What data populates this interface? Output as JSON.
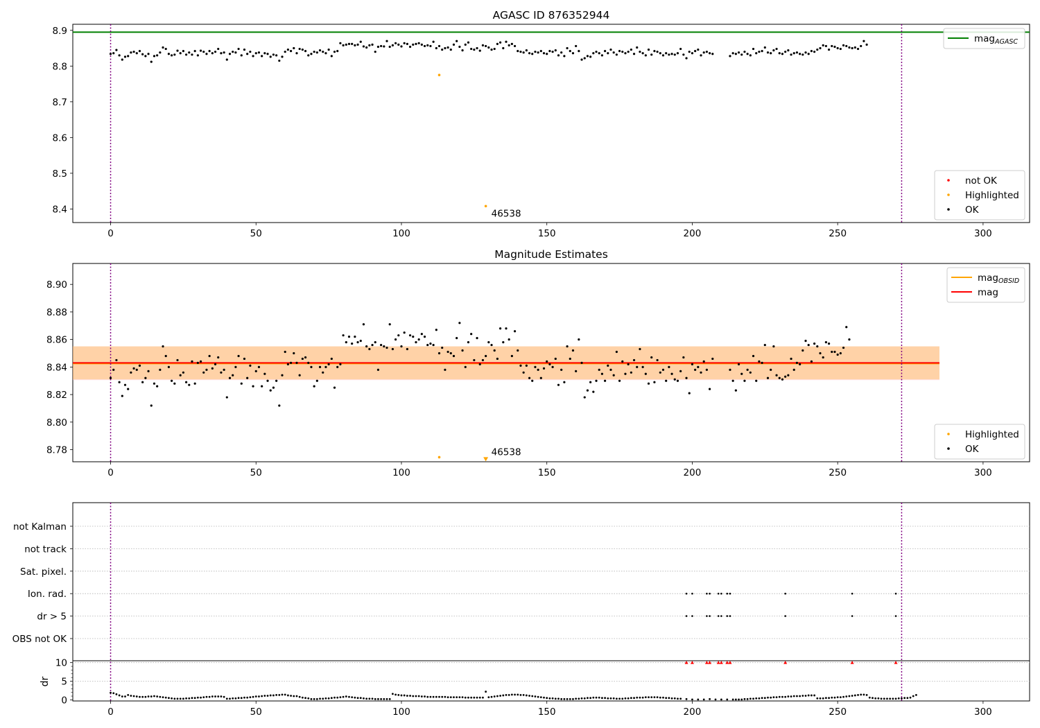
{
  "chart_data": [
    {
      "type": "scatter",
      "title": "AGASC ID 876352944",
      "xlim": [
        -13,
        316
      ],
      "ylim": [
        8.362,
        8.917
      ],
      "xticks": [
        0,
        50,
        100,
        150,
        200,
        250,
        300
      ],
      "yticks": [
        8.4,
        8.5,
        8.6,
        8.7,
        8.8,
        8.9
      ],
      "vlines": [
        0,
        272
      ],
      "hlines": [
        {
          "name": "mag_AGASC",
          "y": 8.895,
          "color": "#008000"
        }
      ],
      "ok_points": {
        "name": "OK",
        "color": "#000000",
        "x_start": 0,
        "x_step": 1,
        "y": [
          8.834,
          8.836,
          8.845,
          8.83,
          8.818,
          8.826,
          8.828,
          8.838,
          8.84,
          8.836,
          8.842,
          8.833,
          8.828,
          8.834,
          8.812,
          8.828,
          8.83,
          8.838,
          8.852,
          8.848,
          8.834,
          8.83,
          8.832,
          8.843,
          8.836,
          8.842,
          8.832,
          8.838,
          8.832,
          8.842,
          8.83,
          8.843,
          8.84,
          8.834,
          8.842,
          8.836,
          8.84,
          8.848,
          8.836,
          8.838,
          8.818,
          8.834,
          8.84,
          8.838,
          8.848,
          8.83,
          8.846,
          8.834,
          8.84,
          8.828,
          8.836,
          8.838,
          8.828,
          8.836,
          8.834,
          8.826,
          8.832,
          8.83,
          8.815,
          8.826,
          8.84,
          8.846,
          8.842,
          8.85,
          8.836,
          8.848,
          8.846,
          8.842,
          8.83,
          8.834,
          8.84,
          8.838,
          8.844,
          8.84,
          8.836,
          8.846,
          8.828,
          8.84,
          8.842,
          8.864,
          8.858,
          8.86,
          8.862,
          8.862,
          8.858,
          8.86,
          8.868,
          8.855,
          8.852,
          8.858,
          8.86,
          8.84,
          8.854,
          8.856,
          8.855,
          8.87,
          8.854,
          8.858,
          8.864,
          8.86,
          8.855,
          8.864,
          8.862,
          8.854,
          8.86,
          8.862,
          8.864,
          8.86,
          8.856,
          8.858,
          8.856,
          8.868,
          8.85,
          8.856,
          8.846,
          8.85,
          8.852,
          8.846,
          8.86,
          8.87,
          8.854,
          8.844,
          8.86,
          8.866,
          8.848,
          8.846,
          8.85,
          8.843,
          8.858,
          8.856,
          8.852,
          8.846,
          8.848,
          8.862,
          8.866,
          8.85,
          8.868,
          8.858,
          8.862,
          8.856,
          8.842,
          8.84,
          8.838,
          8.844,
          8.836,
          8.834,
          8.84,
          8.838,
          8.842,
          8.836,
          8.834,
          8.842,
          8.84,
          8.844,
          8.83,
          8.838,
          8.828,
          8.85,
          8.842,
          8.836,
          8.856,
          8.842,
          8.818,
          8.822,
          8.828,
          8.826,
          8.836,
          8.84,
          8.836,
          8.83,
          8.842,
          8.836,
          8.846,
          8.838,
          8.832,
          8.842,
          8.84,
          8.836,
          8.84,
          8.846,
          8.834,
          8.852,
          8.84,
          8.836,
          8.83,
          8.846,
          8.832,
          8.842,
          8.84,
          8.836,
          8.83,
          8.836,
          8.832,
          8.834,
          8.832,
          8.836,
          8.848,
          8.832,
          8.822,
          8.84,
          8.836,
          8.842,
          8.846,
          8.83,
          8.838,
          8.84,
          8.836,
          8.834,
          8.842,
          8.83,
          8.842,
          8.846,
          8.832,
          8.828,
          8.836,
          8.834,
          8.838,
          8.832,
          8.84,
          8.834,
          8.83,
          8.848,
          8.836,
          8.84,
          8.842,
          8.852,
          8.838,
          8.836,
          8.844,
          8.848,
          8.836,
          8.834,
          8.84,
          8.844,
          8.832,
          8.836,
          8.838,
          8.834,
          8.832,
          8.838,
          8.834,
          8.842,
          8.84,
          8.846,
          8.85,
          8.858,
          8.856,
          8.846,
          8.856,
          8.854,
          8.85,
          8.848,
          8.858,
          8.856,
          8.852,
          8.85,
          8.852,
          8.848,
          8.856,
          8.87,
          8.86
        ],
        "gaps": [
          [
            208,
            212
          ]
        ]
      },
      "highlighted_points": [
        {
          "x": 113,
          "y": 8.775
        },
        {
          "x": 129,
          "y": 8.408
        }
      ],
      "annotations": [
        {
          "text": "46538",
          "x": 129,
          "y": 8.408
        }
      ],
      "legend_upper": {
        "placement": "upper right",
        "entries": [
          {
            "label": "mag",
            "sub": "AGASC",
            "color": "#008000",
            "kind": "line"
          }
        ]
      },
      "legend_lower": {
        "placement": "lower right",
        "entries": [
          {
            "label": "not OK",
            "color": "#ff0000",
            "kind": "dot"
          },
          {
            "label": "Highlighted",
            "color": "#ffa500",
            "kind": "dot"
          },
          {
            "label": "OK",
            "color": "#000000",
            "kind": "dot"
          }
        ]
      }
    },
    {
      "type": "scatter",
      "title": "Magnitude Estimates",
      "xlim": [
        -13,
        316
      ],
      "ylim": [
        8.7712,
        8.9152
      ],
      "xticks": [
        0,
        50,
        100,
        150,
        200,
        250,
        300
      ],
      "yticks": [
        8.78,
        8.8,
        8.82,
        8.84,
        8.86,
        8.88,
        8.9
      ],
      "vlines": [
        0,
        272
      ],
      "bands": [
        {
          "name": "mag band",
          "x": [
            -13,
            285
          ],
          "y": [
            8.8305,
            8.855
          ],
          "color": "#ffc0cb"
        },
        {
          "name": "mag_OBSID band",
          "x": [
            -13,
            285
          ],
          "y": [
            8.831,
            8.855
          ],
          "color": "#ffa500"
        }
      ],
      "hlines": [
        {
          "name": "mag_OBSID",
          "y": 8.8425,
          "color": "#ffa500",
          "x": [
            -13,
            285
          ]
        },
        {
          "name": "mag",
          "y": 8.843,
          "color": "#ff0000",
          "x": [
            -13,
            285
          ]
        }
      ],
      "ok_points": {
        "name": "OK",
        "color": "#000000",
        "x_start": 0,
        "x_step": 1,
        "y": [
          8.832,
          8.838,
          8.845,
          8.829,
          8.819,
          8.827,
          8.824,
          8.836,
          8.839,
          8.838,
          8.841,
          8.829,
          8.832,
          8.837,
          8.812,
          8.828,
          8.826,
          8.838,
          8.855,
          8.848,
          8.84,
          8.83,
          8.828,
          8.845,
          8.834,
          8.836,
          8.829,
          8.827,
          8.844,
          8.828,
          8.843,
          8.844,
          8.836,
          8.838,
          8.848,
          8.839,
          8.842,
          8.847,
          8.836,
          8.838,
          8.818,
          8.832,
          8.834,
          8.84,
          8.848,
          8.828,
          8.846,
          8.832,
          8.841,
          8.826,
          8.837,
          8.84,
          8.826,
          8.835,
          8.83,
          8.823,
          8.825,
          8.83,
          8.812,
          8.834,
          8.851,
          8.842,
          8.843,
          8.85,
          8.843,
          8.834,
          8.846,
          8.847,
          8.843,
          8.84,
          8.826,
          8.83,
          8.84,
          8.836,
          8.84,
          8.842,
          8.846,
          8.825,
          8.84,
          8.842,
          8.863,
          8.858,
          8.862,
          8.857,
          8.862,
          8.858,
          8.859,
          8.871,
          8.855,
          8.853,
          8.856,
          8.858,
          8.838,
          8.856,
          8.855,
          8.854,
          8.871,
          8.853,
          8.86,
          8.863,
          8.855,
          8.865,
          8.853,
          8.863,
          8.862,
          8.858,
          8.86,
          8.864,
          8.862,
          8.856,
          8.857,
          8.856,
          8.867,
          8.85,
          8.854,
          8.838,
          8.851,
          8.85,
          8.848,
          8.861,
          8.872,
          8.852,
          8.84,
          8.858,
          8.864,
          8.845,
          8.861,
          8.842,
          8.845,
          8.848,
          8.858,
          8.856,
          8.852,
          8.846,
          8.868,
          8.858,
          8.868,
          8.86,
          8.848,
          8.866,
          8.852,
          8.841,
          8.836,
          8.841,
          8.832,
          8.83,
          8.84,
          8.838,
          8.832,
          8.839,
          8.844,
          8.842,
          8.84,
          8.846,
          8.827,
          8.838,
          8.829,
          8.855,
          8.846,
          8.852,
          8.837,
          8.86,
          8.843,
          8.818,
          8.823,
          8.829,
          8.822,
          8.83,
          8.838,
          8.835,
          8.83,
          8.841,
          8.838,
          8.834,
          8.851,
          8.83,
          8.844,
          8.835,
          8.842,
          8.836,
          8.845,
          8.84,
          8.853,
          8.84,
          8.835,
          8.828,
          8.847,
          8.829,
          8.845,
          8.836,
          8.838,
          8.83,
          8.84,
          8.835,
          8.831,
          8.83,
          8.837,
          8.847,
          8.832,
          8.821,
          8.842,
          8.838,
          8.84,
          8.836,
          8.844,
          8.838,
          8.824,
          8.846,
          8.84,
          8.833,
          8.831,
          8.842,
          8.844,
          8.838,
          8.83,
          8.823,
          8.842,
          8.835,
          8.83,
          8.838,
          8.836,
          8.848,
          8.83,
          8.844,
          8.843,
          8.856,
          8.832,
          8.838,
          8.855,
          8.834,
          8.832,
          8.831,
          8.833,
          8.834,
          8.846,
          8.838,
          8.843,
          8.842,
          8.852,
          8.859,
          8.856,
          8.844,
          8.857,
          8.855,
          8.85,
          8.847,
          8.858,
          8.857,
          8.851,
          8.851,
          8.849,
          8.85,
          8.854,
          8.869,
          8.86
        ],
        "gaps": [
          [
            208,
            212
          ]
        ]
      },
      "highlighted_points": [
        {
          "x": 113,
          "y": 8.7745
        },
        {
          "x": 129,
          "y": 8.773
        }
      ],
      "annotations": [
        {
          "text": "46538",
          "x": 129,
          "y": 8.773
        }
      ],
      "legend_upper": {
        "placement": "upper right",
        "entries": [
          {
            "label": "mag",
            "sub": "OBSID",
            "color": "#ffa500",
            "kind": "line"
          },
          {
            "label": "mag",
            "sub": "",
            "color": "#ff0000",
            "kind": "line"
          }
        ]
      },
      "legend_lower": {
        "placement": "lower right",
        "entries": [
          {
            "label": "Highlighted",
            "color": "#ffa500",
            "kind": "dot"
          },
          {
            "label": "OK",
            "color": "#000000",
            "kind": "dot"
          }
        ]
      }
    },
    {
      "type": "scatter",
      "title": "",
      "xlim": [
        -13,
        316
      ],
      "xticks": [
        0,
        50,
        100,
        150,
        200,
        250,
        300
      ],
      "vlines": [
        0,
        272
      ],
      "flag_rows": [
        "not Kalman",
        "not track",
        "Sat. pixel.",
        "Ion. rad.",
        "dr > 5",
        "OBS not OK"
      ],
      "flag_points": [
        {
          "row": "Ion. rad.",
          "x": [
            198,
            200,
            205,
            206,
            209,
            210,
            212,
            213,
            232,
            255,
            270
          ]
        },
        {
          "row": "dr > 5",
          "x": [
            198,
            200,
            205,
            206,
            209,
            210,
            212,
            213,
            232,
            255,
            270
          ]
        }
      ],
      "dr_panel": {
        "ylabel": "dr",
        "ylim": [
          -0.3,
          10.5
        ],
        "yticks": [
          0,
          5,
          10
        ],
        "x_start": 0,
        "y": [
          1.9,
          1.8,
          1.5,
          1.2,
          0.9,
          0.9,
          1.3,
          1.1,
          1.0,
          0.9,
          0.8,
          0.8,
          0.8,
          0.9,
          0.9,
          1.0,
          0.9,
          0.8,
          0.7,
          0.6,
          0.5,
          0.4,
          0.3,
          0.3,
          0.3,
          0.3,
          0.4,
          0.4,
          0.5,
          0.5,
          0.6,
          0.6,
          0.7,
          0.8,
          0.8,
          0.9,
          0.9,
          0.9,
          0.9,
          0.8,
          0.3,
          0.3,
          0.4,
          0.4,
          0.5,
          0.5,
          0.6,
          0.6,
          0.7,
          0.8,
          0.9,
          0.9,
          1.0,
          1.1,
          1.1,
          1.2,
          1.2,
          1.3,
          1.3,
          1.4,
          1.4,
          1.2,
          1.1,
          1.0,
          1.0,
          0.8,
          0.6,
          0.5,
          0.4,
          0.2,
          0.2,
          0.2,
          0.3,
          0.3,
          0.4,
          0.4,
          0.5,
          0.6,
          0.6,
          0.7,
          0.8,
          0.9,
          0.8,
          0.7,
          0.6,
          0.5,
          0.5,
          0.4,
          0.3,
          0.3,
          0.3,
          0.2,
          0.2,
          0.2,
          0.2,
          0.2,
          0.2,
          1.6,
          1.4,
          1.3,
          1.2,
          1.2,
          1.1,
          1.1,
          1.0,
          1.0,
          1.0,
          0.9,
          0.9,
          0.8,
          0.8,
          0.8,
          0.8,
          0.8,
          0.8,
          0.8,
          0.7,
          0.7,
          0.7,
          0.7,
          0.7,
          0.7,
          0.6,
          0.6,
          0.6,
          0.6,
          0.6,
          0.6,
          0.6,
          2.2,
          0.7,
          0.8,
          0.9,
          1.0,
          1.1,
          1.2,
          1.3,
          1.3,
          1.4,
          1.4,
          1.4,
          1.3,
          1.3,
          1.2,
          1.1,
          1.0,
          0.9,
          0.8,
          0.7,
          0.6,
          0.5,
          0.4,
          0.4,
          0.3,
          0.3,
          0.2,
          0.2,
          0.2,
          0.2,
          0.2,
          0.3,
          0.3,
          0.4,
          0.4,
          0.5,
          0.5,
          0.6,
          0.6,
          0.6,
          0.5,
          0.5,
          0.4,
          0.4,
          0.4,
          0.3,
          0.3,
          0.3,
          0.4,
          0.4,
          0.5,
          0.5,
          0.6,
          0.6,
          0.6,
          0.7,
          0.7,
          0.7,
          0.7,
          0.7,
          0.6,
          0.6,
          0.5,
          0.5,
          0.4,
          0.4,
          0.3,
          0.3,
          0.2,
          0.2,
          0.1,
          0.1,
          0.1,
          0.1,
          0.1,
          0.1,
          0.2,
          0.2,
          0.2,
          0.1,
          0.1,
          0.1,
          0.1,
          0.1,
          0.1,
          0.1,
          0.1,
          0.1,
          0.1,
          0.2,
          0.2,
          0.3,
          0.3,
          0.4,
          0.4,
          0.5,
          0.5,
          0.6,
          0.6,
          0.7,
          0.7,
          0.8,
          0.8,
          0.8,
          0.9,
          0.9,
          1.0,
          1.0,
          1.0,
          1.1,
          1.1,
          1.2,
          1.2,
          1.2,
          0.4,
          0.4,
          0.4,
          0.5,
          0.5,
          0.6,
          0.6,
          0.7,
          0.7,
          0.8,
          0.9,
          1.0,
          1.1,
          1.2,
          1.3,
          1.4,
          1.4,
          1.3,
          0.6,
          0.5,
          0.4,
          0.4,
          0.3,
          0.3,
          0.3,
          0.3,
          0.3,
          0.3,
          0.4,
          0.4,
          0.5,
          0.5,
          0.6,
          1.0,
          1.3
        ],
        "clipped_markers": {
          "color": "#ff0000",
          "x": [
            198,
            200,
            205,
            206,
            209,
            210,
            212,
            213,
            232,
            255,
            270
          ]
        }
      }
    }
  ]
}
